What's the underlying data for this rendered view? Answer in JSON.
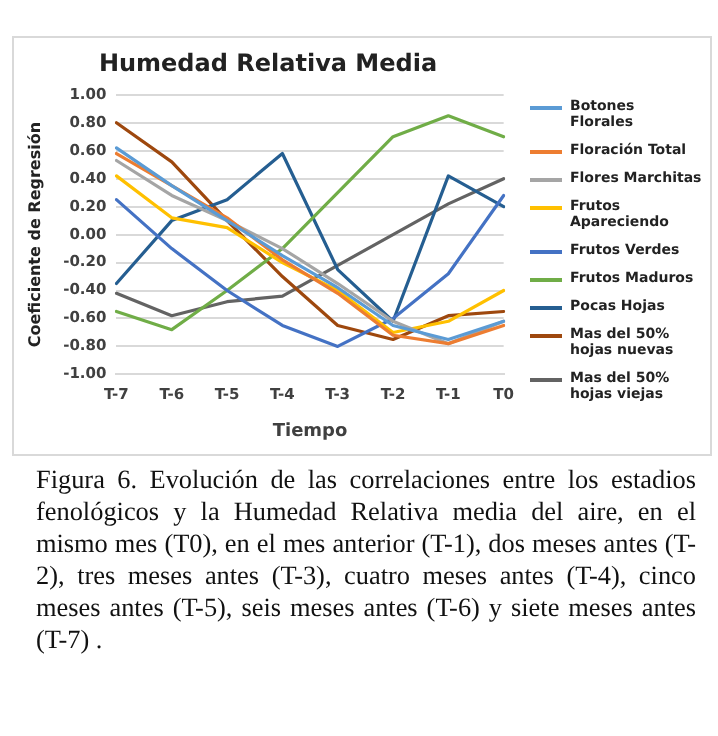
{
  "chart_data": {
    "type": "line",
    "title": "Humedad Relativa Media",
    "xlabel": "Tiempo",
    "ylabel": "Coeficiente de Regresión",
    "categories": [
      "T-7",
      "T-6",
      "T-5",
      "T-4",
      "T-3",
      "T-2",
      "T-1",
      "T0"
    ],
    "series": [
      {
        "name": "Botones Florales",
        "color": "#5b9bd5",
        "values": [
          0.62,
          0.35,
          0.1,
          -0.15,
          -0.38,
          -0.65,
          -0.75,
          -0.62
        ]
      },
      {
        "name": "Floración Total",
        "color": "#ed7d31",
        "values": [
          0.58,
          0.35,
          0.12,
          -0.18,
          -0.42,
          -0.72,
          -0.78,
          -0.65
        ]
      },
      {
        "name": "Flores Marchitas",
        "color": "#a5a5a5",
        "values": [
          0.53,
          0.28,
          0.1,
          -0.1,
          -0.35,
          -0.62,
          -0.78,
          -0.62
        ]
      },
      {
        "name": "Frutos Apareciendo",
        "color": "#ffc000",
        "values": [
          0.42,
          0.12,
          0.05,
          -0.2,
          -0.4,
          -0.7,
          -0.62,
          -0.4
        ]
      },
      {
        "name": "Frutos Verdes",
        "color": "#4472c4",
        "values": [
          0.25,
          -0.1,
          -0.4,
          -0.65,
          -0.8,
          -0.6,
          -0.28,
          0.28
        ]
      },
      {
        "name": "Frutos Maduros",
        "color": "#70ad47",
        "values": [
          -0.55,
          -0.68,
          -0.4,
          -0.1,
          0.3,
          0.7,
          0.85,
          0.7
        ]
      },
      {
        "name": "Pocas Hojas",
        "color": "#255e91",
        "values": [
          -0.35,
          0.1,
          0.25,
          0.58,
          -0.25,
          -0.62,
          0.42,
          0.2
        ]
      },
      {
        "name": "Mas del 50% hojas nuevas",
        "color": "#9e480e",
        "values": [
          0.8,
          0.52,
          0.1,
          -0.3,
          -0.65,
          -0.75,
          -0.58,
          -0.55
        ]
      },
      {
        "name": "Mas del 50% hojas viejas",
        "color": "#636363",
        "values": [
          -0.42,
          -0.58,
          -0.48,
          -0.44,
          -0.22,
          0.0,
          0.22,
          0.4
        ]
      }
    ],
    "ylim": [
      -1,
      1
    ],
    "yticks": [
      {
        "value": -1,
        "label": "-1.00"
      },
      {
        "value": -0.8,
        "label": "-0.80"
      },
      {
        "value": -0.6,
        "label": "-0.60"
      },
      {
        "value": -0.4,
        "label": "-0.40"
      },
      {
        "value": -0.2,
        "label": "-0.20"
      },
      {
        "value": 0,
        "label": "0.00"
      },
      {
        "value": 0.2,
        "label": "0.20"
      },
      {
        "value": 0.4,
        "label": "0.40"
      },
      {
        "value": 0.6,
        "label": "0.60"
      },
      {
        "value": 0.8,
        "label": "0.80"
      },
      {
        "value": 1,
        "label": "1.00"
      }
    ],
    "grid": "y",
    "legend": "right",
    "marker": "none",
    "line_style": "solid",
    "annotations": [
      "Figura 6.  Evolución de las correlaciones entre los estadios fenológicos y la Humedad Relativa media del aire, en el mismo mes (T0), en el mes anterior (T-1), dos meses antes (T-2), tres meses antes (T-3), cuatro meses antes (T-4), cinco meses antes (T-5), seis meses antes (T-6) y siete meses antes (T-7) ."
    ]
  }
}
